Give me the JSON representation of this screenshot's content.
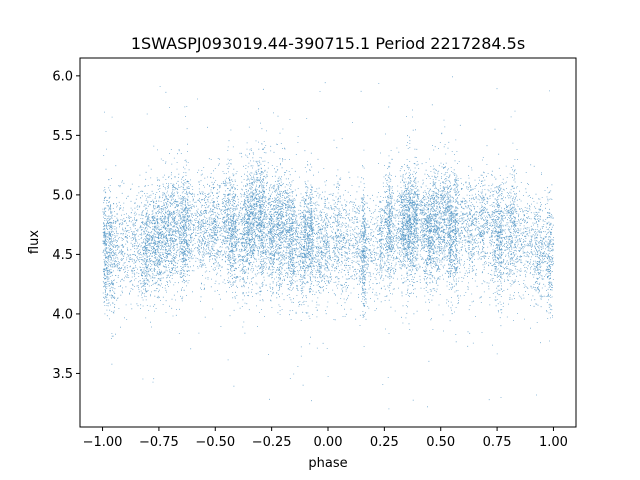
{
  "chart_data": {
    "type": "scatter",
    "title": "1SWASPJ093019.44-390715.1 Period 2217284.5s",
    "xlabel": "phase",
    "ylabel": "flux",
    "xlim": [
      -1.1,
      1.1
    ],
    "ylim": [
      3.05,
      6.15
    ],
    "xticks": [
      -1.0,
      -0.75,
      -0.5,
      -0.25,
      0.0,
      0.25,
      0.5,
      0.75,
      1.0
    ],
    "xtick_labels": [
      "−1.00",
      "−0.75",
      "−0.50",
      "−0.25",
      "0.00",
      "0.25",
      "0.50",
      "0.75",
      "1.00"
    ],
    "yticks": [
      3.5,
      4.0,
      4.5,
      5.0,
      5.5,
      6.0
    ],
    "ytick_labels": [
      "3.5",
      "4.0",
      "4.5",
      "5.0",
      "5.5",
      "6.0"
    ],
    "grid": false,
    "marker_color": "#1f77b4",
    "series": [
      {
        "x_range": [
          -1.0,
          1.0
        ],
        "approx_points": 16000,
        "flux_median": 4.6,
        "flux_core_range": [
          4.0,
          5.2
        ],
        "flux_full_range": [
          3.2,
          6.0
        ],
        "phase_profile": [
          {
            "phase": -1.0,
            "flux": 4.55
          },
          {
            "phase": -0.9,
            "flux": 4.6
          },
          {
            "phase": -0.8,
            "flux": 4.55
          },
          {
            "phase": -0.7,
            "flux": 4.7
          },
          {
            "phase": -0.6,
            "flux": 4.75
          },
          {
            "phase": -0.5,
            "flux": 4.75
          },
          {
            "phase": -0.4,
            "flux": 4.7
          },
          {
            "phase": -0.3,
            "flux": 4.75
          },
          {
            "phase": -0.2,
            "flux": 4.65
          },
          {
            "phase": -0.1,
            "flux": 4.6
          },
          {
            "phase": 0.0,
            "flux": 4.55
          },
          {
            "phase": 0.1,
            "flux": 4.6
          },
          {
            "phase": 0.2,
            "flux": 4.55
          },
          {
            "phase": 0.3,
            "flux": 4.7
          },
          {
            "phase": 0.4,
            "flux": 4.75
          },
          {
            "phase": 0.5,
            "flux": 4.75
          },
          {
            "phase": 0.6,
            "flux": 4.7
          },
          {
            "phase": 0.7,
            "flux": 4.75
          },
          {
            "phase": 0.8,
            "flux": 4.65
          },
          {
            "phase": 0.9,
            "flux": 4.6
          },
          {
            "phase": 1.0,
            "flux": 4.55
          }
        ]
      }
    ]
  }
}
